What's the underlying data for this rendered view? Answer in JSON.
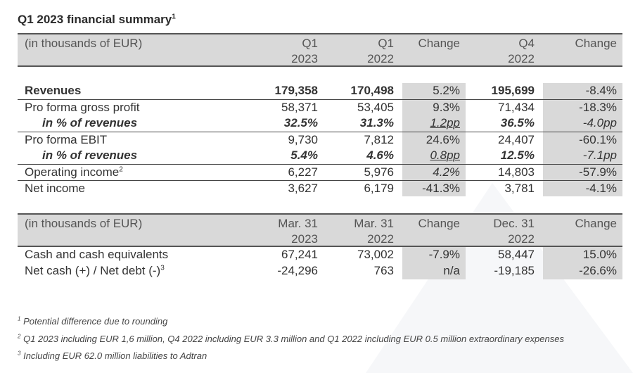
{
  "title": "Q1 2023 financial summary",
  "title_note": "1",
  "table1": {
    "header": [
      "(in thousands of EUR)",
      "Q1",
      "Q1",
      "Change",
      "Q4",
      "Change"
    ],
    "header2": [
      "",
      "2023",
      "2022",
      "",
      "2022",
      ""
    ],
    "rows": [
      {
        "label": "Revenues",
        "note": "",
        "values": [
          "179,358",
          "170,498",
          "5.2%",
          "195,699",
          "-8.4%"
        ]
      },
      {
        "label": "Pro forma gross profit",
        "note": "",
        "values": [
          "58,371",
          "53,405",
          "9.3%",
          "71,434",
          "-18.3%"
        ]
      },
      {
        "label": "in % of revenues",
        "note": "",
        "values": [
          "32.5%",
          "31.3%",
          "1.2pp",
          "36.5%",
          "-4.0pp"
        ]
      },
      {
        "label": "Pro forma EBIT",
        "note": "",
        "values": [
          "9,730",
          "7,812",
          "24.6%",
          "24,407",
          "-60.1%"
        ]
      },
      {
        "label": "in % of revenues",
        "note": "",
        "values": [
          "5.4%",
          "4.6%",
          "0.8pp",
          "12.5%",
          "-7.1pp"
        ]
      },
      {
        "label": "Operating income",
        "note": "2",
        "values": [
          "6,227",
          "5,976",
          "4.2%",
          "14,803",
          "-57.9%"
        ]
      },
      {
        "label": "Net income",
        "note": "",
        "values": [
          "3,627",
          "6,179",
          "-41.3%",
          "3,781",
          "-4.1%"
        ]
      }
    ]
  },
  "table2": {
    "header": [
      "(in thousands of EUR)",
      "Mar. 31",
      "Mar. 31",
      "Change",
      "Dec. 31",
      "Change"
    ],
    "header2": [
      "",
      "2023",
      "2022",
      "",
      "2022",
      ""
    ],
    "rows": [
      {
        "label": "Cash and cash equivalents",
        "note": "",
        "values": [
          "67,241",
          "73,002",
          "-7.9%",
          "58,447",
          "15.0%"
        ]
      },
      {
        "label": "Net cash (+) / Net debt (-)",
        "note": "3",
        "values": [
          "-24,296",
          "763",
          "n/a",
          "-19,185",
          "-26.6%"
        ]
      }
    ]
  },
  "footnotes": [
    {
      "mark": "1",
      "text": "Potential difference due to rounding"
    },
    {
      "mark": "2",
      "text": "Q1 2023 including EUR 1,6 million, Q4 2022 including EUR 3.3 million and Q1 2022 including EUR 0.5 million extraordinary expenses"
    },
    {
      "mark": "3",
      "text": "Including EUR 62.0 million liabilities to Adtran"
    }
  ]
}
